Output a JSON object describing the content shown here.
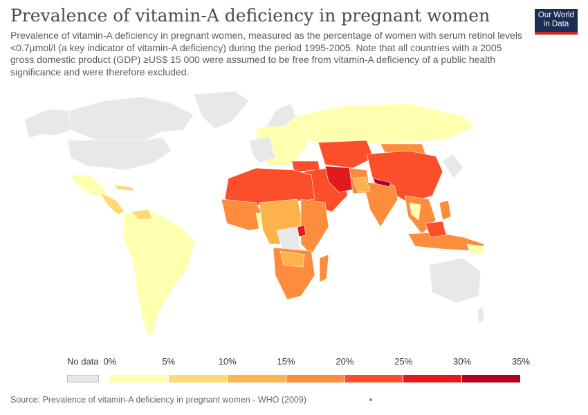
{
  "header": {
    "title": "Prevalence of vitamin-A deficiency in pregnant women",
    "subtitle": "Prevalence of vitamin-A deficiency in pregnant women, measured as the percentage of women with serum retinol levels <0.7µmol/l (a key indicator of vitamin-A deficiency) during the period 1995-2005. Note that all countries with a 2005 gross domestic product (GDP) ≥US$ 15 000 were assumed to be free from vitamin-A deficiency of a public health significance and were therefore excluded."
  },
  "logo": {
    "line1": "Our World",
    "line2": "in Data"
  },
  "legend": {
    "no_data_label": "No data",
    "no_data_color": "#e8e8e8",
    "ticks": [
      "0%",
      "5%",
      "10%",
      "15%",
      "20%",
      "25%",
      "30%",
      "35%"
    ],
    "bins": [
      {
        "from": 0,
        "to": 5,
        "color": "#ffffb0"
      },
      {
        "from": 5,
        "to": 10,
        "color": "#fed976"
      },
      {
        "from": 10,
        "to": 15,
        "color": "#feb24c"
      },
      {
        "from": 15,
        "to": 20,
        "color": "#fd8d3c"
      },
      {
        "from": 20,
        "to": 25,
        "color": "#fc4e2a"
      },
      {
        "from": 25,
        "to": 30,
        "color": "#e31a1c"
      },
      {
        "from": 30,
        "to": 35,
        "color": "#b10026"
      }
    ]
  },
  "footer": {
    "source": "Source: Prevalence of vitamin-A deficiency in pregnant women - WHO (2009)"
  }
}
